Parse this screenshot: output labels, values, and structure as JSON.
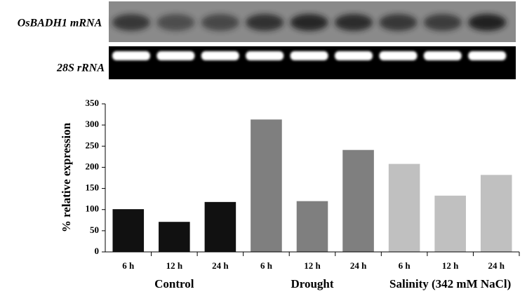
{
  "blot": {
    "rows": [
      "OsBADH1 mRNA",
      "28S rRNA"
    ]
  },
  "chart_data": {
    "type": "bar",
    "y_label": "% relative expression",
    "categories": [
      "6 h",
      "12 h",
      "24 h"
    ],
    "series": [
      {
        "name": "Control",
        "color": "#111111",
        "values": [
          101,
          71,
          118
        ]
      },
      {
        "name": "Drought",
        "color": "#7f7f7f",
        "values": [
          313,
          120,
          241
        ]
      },
      {
        "name": "Salinity (342 mM NaCl)",
        "color": "#c0c0c0",
        "values": [
          208,
          133,
          182
        ]
      }
    ],
    "ylim": [
      0,
      350
    ],
    "yticks": [
      0,
      50,
      100,
      150,
      200,
      250,
      300,
      350
    ],
    "grid": false
  }
}
